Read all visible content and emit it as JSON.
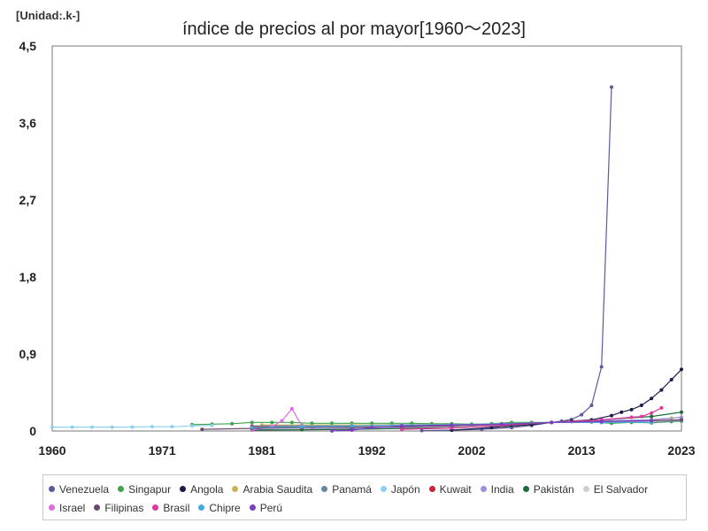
{
  "chart_data": {
    "type": "line",
    "unit_label": "[Unidad:.k-]",
    "title": "índice de precios al por mayor[1960～2023]",
    "xlabel": "",
    "ylabel": "",
    "xlim": [
      1960,
      2023
    ],
    "ylim": [
      0,
      4.5
    ],
    "x_ticks": [
      1960,
      1971,
      1981,
      1992,
      2002,
      2013,
      2023
    ],
    "x_tick_labels": [
      "1960",
      "1971",
      "1981",
      "1992",
      "2002",
      "2013",
      "2023"
    ],
    "y_ticks": [
      0,
      0.9,
      1.8,
      2.7,
      3.6,
      4.5
    ],
    "y_tick_labels": [
      "0",
      "0,9",
      "1,8",
      "2,7",
      "3,6",
      "4,5"
    ],
    "grid": true,
    "legend_position": "bottom",
    "series": [
      {
        "name": "Venezuela",
        "color": "#5b5b9b",
        "x": [
          1997,
          2000,
          2003,
          2006,
          2008,
          2010,
          2011,
          2012,
          2013,
          2014,
          2015,
          2016
        ],
        "y": [
          0.005,
          0.01,
          0.02,
          0.04,
          0.065,
          0.1,
          0.115,
          0.135,
          0.19,
          0.3,
          0.75,
          4.02
        ]
      },
      {
        "name": "Singapur",
        "color": "#3fa34d",
        "x": [
          1974,
          1976,
          1978,
          1980,
          1982,
          1984,
          1986,
          1988,
          1990,
          1992,
          1994,
          1996,
          1998,
          2000,
          2002,
          2004,
          2006,
          2008,
          2010,
          2012,
          2014,
          2016,
          2018,
          2020,
          2022,
          2023
        ],
        "y": [
          0.075,
          0.08,
          0.085,
          0.1,
          0.1,
          0.1,
          0.09,
          0.09,
          0.09,
          0.09,
          0.09,
          0.09,
          0.085,
          0.085,
          0.08,
          0.085,
          0.1,
          0.1,
          0.1,
          0.11,
          0.105,
          0.09,
          0.1,
          0.095,
          0.11,
          0.115
        ]
      },
      {
        "name": "Angola",
        "color": "#1c1c4a",
        "x": [
          2000,
          2004,
          2008,
          2010,
          2012,
          2014,
          2016,
          2017,
          2018,
          2019,
          2020,
          2021,
          2022,
          2023
        ],
        "y": [
          0.01,
          0.04,
          0.075,
          0.1,
          0.115,
          0.13,
          0.18,
          0.22,
          0.25,
          0.3,
          0.38,
          0.48,
          0.6,
          0.72
        ]
      },
      {
        "name": "Arabia Saudita",
        "color": "#c7b25d",
        "x": [
          1981,
          1985,
          1990,
          1995,
          2000,
          2005,
          2010,
          2015,
          2020,
          2022,
          2023
        ],
        "y": [
          0.07,
          0.07,
          0.07,
          0.075,
          0.075,
          0.085,
          0.1,
          0.11,
          0.13,
          0.15,
          0.16
        ]
      },
      {
        "name": "Panamá",
        "color": "#5f8aa0",
        "x": [
          1980,
          1985,
          1990,
          1995,
          2000,
          2005,
          2010,
          2015,
          2020,
          2023
        ],
        "y": [
          0.06,
          0.06,
          0.06,
          0.065,
          0.07,
          0.08,
          0.1,
          0.1,
          0.1,
          0.12
        ]
      },
      {
        "name": "Japón",
        "color": "#8fd0f0",
        "x": [
          1960,
          1962,
          1964,
          1966,
          1968,
          1970,
          1972,
          1974,
          1976
        ],
        "y": [
          0.045,
          0.045,
          0.045,
          0.045,
          0.047,
          0.05,
          0.05,
          0.06,
          0.065
        ]
      },
      {
        "name": "Kuwait",
        "color": "#cc2233",
        "x": [
          1980,
          1985,
          1990,
          1995,
          2000,
          2005,
          2010,
          2015,
          2020,
          2023
        ],
        "y": [
          0.05,
          0.05,
          0.055,
          0.06,
          0.06,
          0.075,
          0.1,
          0.11,
          0.12,
          0.13
        ]
      },
      {
        "name": "India",
        "color": "#9b8fe0",
        "x": [
          1980,
          1985,
          1990,
          1995,
          2000,
          2005,
          2010,
          2015,
          2020,
          2023
        ],
        "y": [
          0.015,
          0.02,
          0.03,
          0.045,
          0.06,
          0.075,
          0.1,
          0.12,
          0.13,
          0.16
        ]
      },
      {
        "name": "Pakistán",
        "color": "#1e6b3a",
        "x": [
          1980,
          1985,
          1990,
          1995,
          2000,
          2005,
          2010,
          2015,
          2020,
          2023
        ],
        "y": [
          0.01,
          0.015,
          0.02,
          0.03,
          0.04,
          0.06,
          0.1,
          0.13,
          0.17,
          0.22
        ]
      },
      {
        "name": "El Salvador",
        "color": "#cfcfcf",
        "x": [
          1990,
          1995,
          2000,
          2005,
          2010,
          2015,
          2020,
          2023
        ],
        "y": [
          0.05,
          0.06,
          0.07,
          0.08,
          0.1,
          0.1,
          0.11,
          0.13
        ]
      },
      {
        "name": "Israel",
        "color": "#e06ce0",
        "x": [
          1980,
          1982,
          1983,
          1984,
          1985,
          1986,
          1990
        ],
        "y": [
          0.01,
          0.05,
          0.12,
          0.26,
          0.06,
          0.04,
          0.05
        ]
      },
      {
        "name": "Filipinas",
        "color": "#6a4a6a",
        "x": [
          1975,
          1980,
          1985,
          1990,
          1995,
          2000,
          2005,
          2010,
          2015,
          2020,
          2023
        ],
        "y": [
          0.02,
          0.03,
          0.04,
          0.045,
          0.05,
          0.06,
          0.08,
          0.1,
          0.11,
          0.12,
          0.13
        ]
      },
      {
        "name": "Brasil",
        "color": "#e0389c",
        "x": [
          1995,
          2000,
          2005,
          2010,
          2015,
          2018,
          2019,
          2020,
          2021
        ],
        "y": [
          0.02,
          0.035,
          0.065,
          0.1,
          0.13,
          0.16,
          0.17,
          0.21,
          0.27
        ]
      },
      {
        "name": "Chipre",
        "color": "#44aadd",
        "x": [
          1980,
          1985,
          1990,
          1995,
          2000,
          2005,
          2010,
          2015,
          2020
        ],
        "y": [
          0.04,
          0.05,
          0.06,
          0.07,
          0.075,
          0.085,
          0.1,
          0.1,
          0.1
        ]
      },
      {
        "name": "Perú",
        "color": "#7a3fc0",
        "x": [
          1988,
          1990,
          1992,
          1995,
          2000,
          2005,
          2010,
          2015,
          2020
        ],
        "y": [
          0.001,
          0.01,
          0.04,
          0.06,
          0.07,
          0.08,
          0.1,
          0.11,
          0.12
        ]
      }
    ]
  }
}
